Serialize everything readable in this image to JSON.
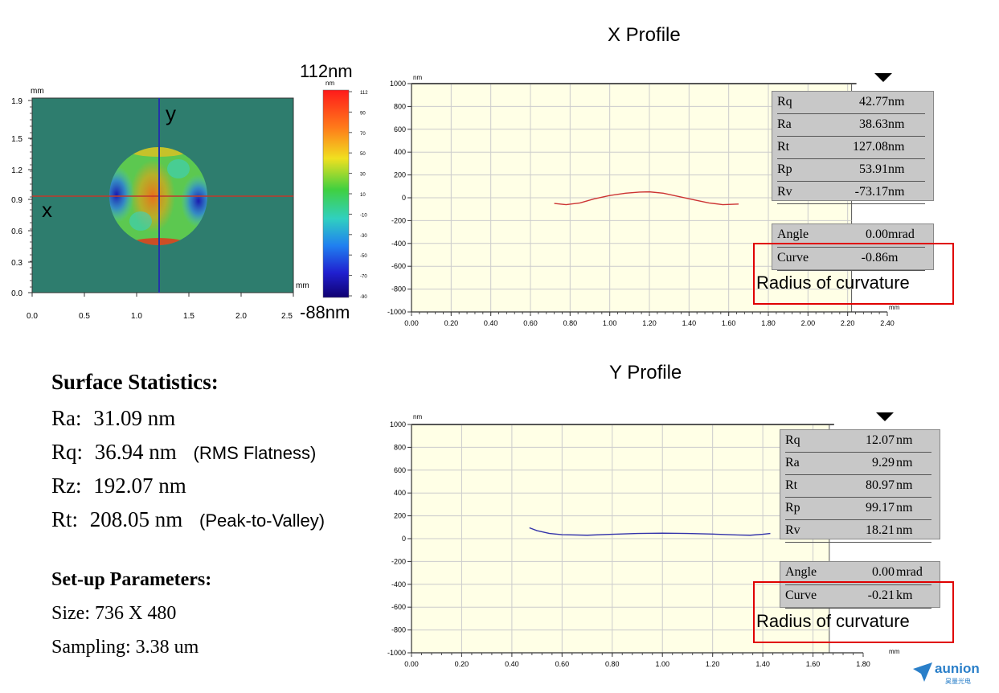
{
  "heatmap": {
    "unit": "mm",
    "x_ticks": [
      "0.0",
      "0.5",
      "1.0",
      "1.5",
      "2.0",
      "2.5"
    ],
    "y_ticks": [
      "1.9",
      "1.5",
      "1.2",
      "0.9",
      "0.6",
      "0.3",
      "0.0"
    ],
    "axis_x_label": "x",
    "axis_y_label": "y",
    "scale_top": "112nm",
    "scale_bottom": "-88nm",
    "colorbar_unit": "nm",
    "colorbar_ticks": [
      "112",
      "90",
      "70",
      "50",
      "30",
      "10",
      "-10",
      "-30",
      "-50",
      "-70",
      "-90"
    ],
    "colors": {
      "background": "#2e7d6e",
      "crosshair_h": "#c0392b",
      "crosshair_v": "#2233aa"
    }
  },
  "chart_data": [
    {
      "type": "line",
      "title": "X Profile",
      "ylabel": "nm",
      "xlabel": "mm",
      "ylim": [
        -1000,
        1000
      ],
      "xlim": [
        0,
        2.4
      ],
      "x_ticks": [
        "0.00",
        "0.20",
        "0.40",
        "0.60",
        "0.80",
        "1.00",
        "1.20",
        "1.40",
        "1.60",
        "1.80",
        "2.00",
        "2.20",
        "2.40"
      ],
      "y_ticks": [
        "1000",
        "800",
        "600",
        "400",
        "200",
        "0",
        "-200",
        "-400",
        "-600",
        "-800",
        "-1000"
      ],
      "color": "#cc3333",
      "series": [
        {
          "x": [
            0.72,
            0.78,
            0.85,
            0.92,
            1.0,
            1.08,
            1.15,
            1.2,
            1.27,
            1.35,
            1.43,
            1.5,
            1.57,
            1.65
          ],
          "values": [
            -50,
            -60,
            -45,
            -10,
            20,
            40,
            50,
            52,
            40,
            10,
            -20,
            -45,
            -60,
            -55
          ]
        }
      ],
      "stats": [
        {
          "label": "Rq",
          "value": "42.77",
          "unit": "nm"
        },
        {
          "label": "Ra",
          "value": "38.63",
          "unit": "nm"
        },
        {
          "label": "Rt",
          "value": "127.08",
          "unit": "nm"
        },
        {
          "label": "Rp",
          "value": "53.91",
          "unit": "nm"
        },
        {
          "label": "Rv",
          "value": "-73.17",
          "unit": "nm"
        }
      ],
      "curve": [
        {
          "label": "Angle",
          "value": "0.00",
          "unit": "mrad"
        },
        {
          "label": "Curve",
          "value": "-0.86",
          "unit": "m"
        }
      ],
      "annotation": "Radius of curvature"
    },
    {
      "type": "line",
      "title": "Y Profile",
      "ylabel": "nm",
      "xlabel": "mm",
      "ylim": [
        -1000,
        1000
      ],
      "xlim": [
        0,
        1.8
      ],
      "x_ticks": [
        "0.00",
        "0.20",
        "0.40",
        "0.60",
        "0.80",
        "1.00",
        "1.20",
        "1.40",
        "1.60",
        "1.80"
      ],
      "y_ticks": [
        "1000",
        "800",
        "600",
        "400",
        "200",
        "0",
        "-200",
        "-400",
        "-600",
        "-800",
        "-1000"
      ],
      "color": "#3333aa",
      "series": [
        {
          "x": [
            0.47,
            0.5,
            0.55,
            0.6,
            0.7,
            0.8,
            0.9,
            1.0,
            1.1,
            1.2,
            1.3,
            1.35,
            1.4,
            1.43
          ],
          "values": [
            95,
            70,
            45,
            35,
            30,
            38,
            45,
            48,
            45,
            40,
            32,
            30,
            38,
            45
          ]
        }
      ],
      "stats": [
        {
          "label": "Rq",
          "value": "12.07",
          "unit": "nm"
        },
        {
          "label": "Ra",
          "value": "9.29",
          "unit": "nm"
        },
        {
          "label": "Rt",
          "value": "80.97",
          "unit": "nm"
        },
        {
          "label": "Rp",
          "value": "99.17",
          "unit": "nm"
        },
        {
          "label": "Rv",
          "value": "18.21",
          "unit": "nm"
        }
      ],
      "curve": [
        {
          "label": "Angle",
          "value": "0.00",
          "unit": "mrad"
        },
        {
          "label": "Curve",
          "value": "-0.21",
          "unit": "km"
        }
      ],
      "annotation": "Radius of curvature"
    }
  ],
  "surface": {
    "heading": "Surface Statistics:",
    "rows": [
      {
        "label": "Ra:",
        "value": "31.09 nm",
        "note": ""
      },
      {
        "label": "Rq:",
        "value": "36.94 nm",
        "note": "(RMS Flatness)"
      },
      {
        "label": "Rz:",
        "value": "192.07 nm",
        "note": ""
      },
      {
        "label": "Rt:",
        "value": "208.05 nm",
        "note": "(Peak-to-Valley)"
      }
    ]
  },
  "setup": {
    "heading": "Set-up Parameters:",
    "size": "Size: 736 X 480",
    "sampling": "Sampling:  3.38 um"
  },
  "logo": {
    "text": "aunion",
    "sub": "昊量光电",
    "color": "#2a7fc9"
  }
}
